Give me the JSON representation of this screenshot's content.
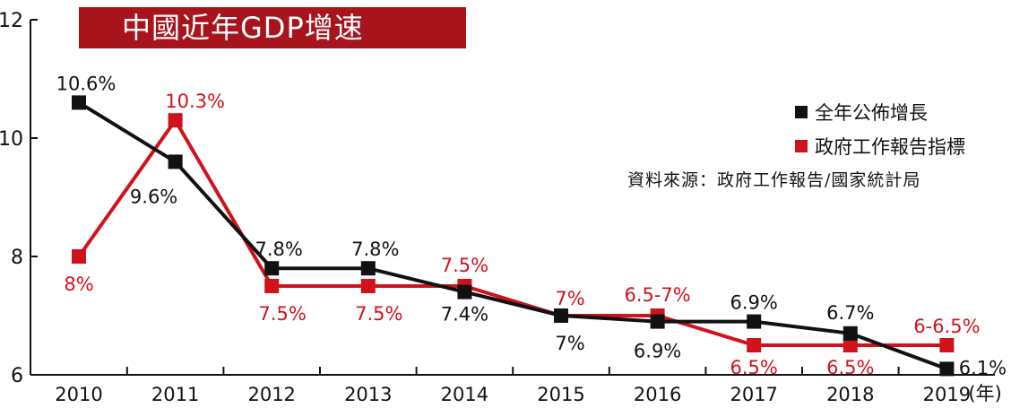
{
  "chart_data": {
    "type": "line",
    "title": "中國近年GDP增速",
    "xunit": "(年)",
    "categories": [
      "2010",
      "2011",
      "2012",
      "2013",
      "2014",
      "2015",
      "2016",
      "2017",
      "2018",
      "2019"
    ],
    "ylim": [
      6,
      12
    ],
    "yticks": [
      "6",
      "8",
      "10",
      "12"
    ],
    "grid": false,
    "legend_position": "right",
    "source": "資料來源：政府工作報告/國家統計局",
    "series": [
      {
        "name": "全年公佈增長",
        "color": "#111111",
        "values": [
          10.6,
          9.6,
          7.8,
          7.8,
          7.4,
          7.0,
          6.9,
          6.9,
          6.7,
          6.1
        ],
        "labels": [
          "10.6%",
          "9.6%",
          "7.8%",
          "7.8%",
          "7.4%",
          "7%",
          "6.9%",
          "6.9%",
          "6.7%",
          "6.1%"
        ]
      },
      {
        "name": "政府工作報告指標",
        "color": "#d0121b",
        "values": [
          8.0,
          10.3,
          7.5,
          7.5,
          7.5,
          7.0,
          7.0,
          6.5,
          6.5,
          6.5
        ],
        "labels": [
          "8%",
          "10.3%",
          "7.5%",
          "7.5%",
          "7.5%",
          "7%",
          "6.5-7%",
          "6.5%",
          "6.5%",
          "6-6.5%"
        ]
      }
    ]
  }
}
